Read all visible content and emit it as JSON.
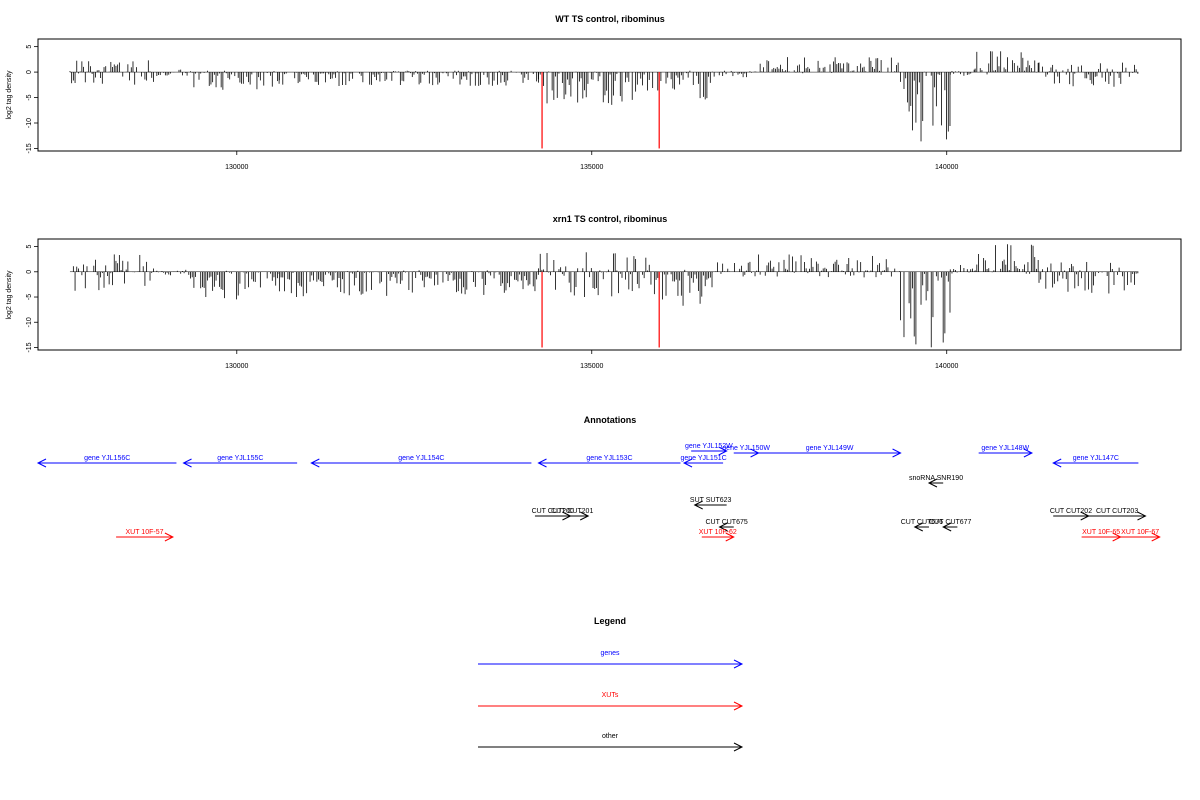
{
  "chart_data": [
    {
      "type": "bar",
      "title": "WT TS control, ribominus",
      "ylabel": "log2 tag density",
      "xlabel": "",
      "xlim": [
        127200,
        143300
      ],
      "ylim": [
        -15.5,
        6.5
      ],
      "xticks": [
        130000,
        135000,
        140000
      ],
      "yticks": [
        5,
        0,
        -5,
        -10,
        -15
      ],
      "grid": false,
      "series_color": "#000000",
      "marker_color": "#ff0000",
      "markers_x": [
        134300,
        135950
      ],
      "segments": [
        {
          "start": 127650,
          "end": 128850,
          "pos_max": 2.5,
          "neg_max": 3.0
        },
        {
          "start": 128850,
          "end": 129300,
          "pos_max": 0.5,
          "neg_max": 0.8
        },
        {
          "start": 129300,
          "end": 130600,
          "pos_max": 0.3,
          "neg_max": 3.5
        },
        {
          "start": 130600,
          "end": 134250,
          "pos_max": 0.3,
          "neg_max": 2.8
        },
        {
          "start": 134250,
          "end": 135950,
          "pos_max": 0.4,
          "neg_max": 6.5
        },
        {
          "start": 135950,
          "end": 136700,
          "pos_max": 0.3,
          "neg_max": 5.5
        },
        {
          "start": 136700,
          "end": 137300,
          "pos_max": 0.3,
          "neg_max": 1.0
        },
        {
          "start": 137300,
          "end": 139350,
          "pos_max": 3.0,
          "neg_max": 0.3
        },
        {
          "start": 139350,
          "end": 140050,
          "pos_max": 0.3,
          "neg_max": 15.0
        },
        {
          "start": 140050,
          "end": 140400,
          "pos_max": 0.5,
          "neg_max": 0.8
        },
        {
          "start": 140400,
          "end": 141300,
          "pos_max": 4.5,
          "neg_max": 0.5
        },
        {
          "start": 141300,
          "end": 142700,
          "pos_max": 2.0,
          "neg_max": 3.0
        }
      ]
    },
    {
      "type": "bar",
      "title": "xrn1 TS control, ribominus",
      "ylabel": "log2 tag density",
      "xlabel": "",
      "xlim": [
        127200,
        143300
      ],
      "ylim": [
        -15.5,
        6.5
      ],
      "xticks": [
        130000,
        135000,
        140000
      ],
      "yticks": [
        5,
        0,
        -5,
        -10,
        -15
      ],
      "grid": false,
      "series_color": "#000000",
      "marker_color": "#ff0000",
      "markers_x": [
        134300,
        135950
      ],
      "segments": [
        {
          "start": 127650,
          "end": 128850,
          "pos_max": 3.5,
          "neg_max": 4.0
        },
        {
          "start": 128850,
          "end": 129300,
          "pos_max": 0.5,
          "neg_max": 0.8
        },
        {
          "start": 129300,
          "end": 130600,
          "pos_max": 0.4,
          "neg_max": 5.5
        },
        {
          "start": 130600,
          "end": 134250,
          "pos_max": 0.4,
          "neg_max": 5.0
        },
        {
          "start": 134250,
          "end": 135950,
          "pos_max": 4.0,
          "neg_max": 5.0
        },
        {
          "start": 135950,
          "end": 136700,
          "pos_max": 1.0,
          "neg_max": 7.0
        },
        {
          "start": 136700,
          "end": 137300,
          "pos_max": 2.0,
          "neg_max": 1.5
        },
        {
          "start": 137300,
          "end": 139350,
          "pos_max": 3.5,
          "neg_max": 1.2
        },
        {
          "start": 139350,
          "end": 140050,
          "pos_max": 0.5,
          "neg_max": 15.0
        },
        {
          "start": 140050,
          "end": 140400,
          "pos_max": 1.5,
          "neg_max": 1.0
        },
        {
          "start": 140400,
          "end": 141300,
          "pos_max": 6.0,
          "neg_max": 1.0
        },
        {
          "start": 141300,
          "end": 142700,
          "pos_max": 2.0,
          "neg_max": 4.5
        }
      ]
    }
  ],
  "annotations": {
    "title": "Annotations",
    "xlim": [
      127200,
      143300
    ],
    "colors": {
      "gene": "#0000ff",
      "xut": "#ff0000",
      "other": "#000000"
    },
    "features": [
      {
        "label": "gene YJL156C",
        "start": 127200,
        "end": 129150,
        "strand": "-",
        "kind": "gene",
        "row": 0
      },
      {
        "label": "gene YJL155C",
        "start": 129250,
        "end": 130850,
        "strand": "-",
        "kind": "gene",
        "row": 0
      },
      {
        "label": "gene YJL154C",
        "start": 131050,
        "end": 134150,
        "strand": "-",
        "kind": "gene",
        "row": 0
      },
      {
        "label": "gene YJL153C",
        "start": 134250,
        "end": 136250,
        "strand": "-",
        "kind": "gene",
        "row": 0
      },
      {
        "label": "gene YJL152W",
        "start": 136400,
        "end": 136900,
        "strand": "+",
        "kind": "gene",
        "row": -2
      },
      {
        "label": "gene YJL151C",
        "start": 136300,
        "end": 136850,
        "strand": "-",
        "kind": "gene",
        "row": 0
      },
      {
        "label": "gene YJL150W",
        "start": 137000,
        "end": 137350,
        "strand": "+",
        "kind": "gene",
        "row": -1
      },
      {
        "label": "gene YJL149W",
        "start": 137350,
        "end": 139350,
        "strand": "+",
        "kind": "gene",
        "row": -1
      },
      {
        "label": "gene YJL148W",
        "start": 140450,
        "end": 141200,
        "strand": "+",
        "kind": "gene",
        "row": -1
      },
      {
        "label": "gene YJL147C",
        "start": 141500,
        "end": 142700,
        "strand": "-",
        "kind": "gene",
        "row": 0
      },
      {
        "label": "snoRNA SNR190",
        "start": 139750,
        "end": 139950,
        "strand": "-",
        "kind": "other",
        "row": 2
      },
      {
        "label": "SUT SUT623",
        "start": 136450,
        "end": 136900,
        "strand": "-",
        "kind": "other",
        "row": 3
      },
      {
        "label": "CUT CUT200",
        "start": 134200,
        "end": 134700,
        "strand": "+",
        "kind": "other",
        "row": 4
      },
      {
        "label": "CUT CUT201",
        "start": 134500,
        "end": 134950,
        "strand": "+",
        "kind": "other",
        "row": 4
      },
      {
        "label": "CUT CUT675",
        "start": 136800,
        "end": 137000,
        "strand": "-",
        "kind": "other",
        "row": 5
      },
      {
        "label": "CUT CUT676",
        "start": 139550,
        "end": 139750,
        "strand": "-",
        "kind": "other",
        "row": 5
      },
      {
        "label": "CUT CUT677",
        "start": 139950,
        "end": 140150,
        "strand": "-",
        "kind": "other",
        "row": 5
      },
      {
        "label": "CUT CUT202",
        "start": 141500,
        "end": 142000,
        "strand": "+",
        "kind": "other",
        "row": 4
      },
      {
        "label": "CUT CUT203",
        "start": 142000,
        "end": 142800,
        "strand": "+",
        "kind": "other",
        "row": 4
      },
      {
        "label": "XUT 10F-57",
        "start": 128300,
        "end": 129100,
        "strand": "+",
        "kind": "xut",
        "row": 6
      },
      {
        "label": "XUT 10F-62",
        "start": 136550,
        "end": 137000,
        "strand": "+",
        "kind": "xut",
        "row": 6
      },
      {
        "label": "XUT 10F-65",
        "start": 141900,
        "end": 142450,
        "strand": "+",
        "kind": "xut",
        "row": 6
      },
      {
        "label": "XUT 10F-67",
        "start": 142450,
        "end": 143000,
        "strand": "+",
        "kind": "xut",
        "row": 6
      }
    ]
  },
  "legend": {
    "title": "Legend",
    "items": [
      {
        "label": "genes",
        "color": "#0000ff"
      },
      {
        "label": "XUTs",
        "color": "#ff0000"
      },
      {
        "label": "other",
        "color": "#000000"
      }
    ]
  }
}
